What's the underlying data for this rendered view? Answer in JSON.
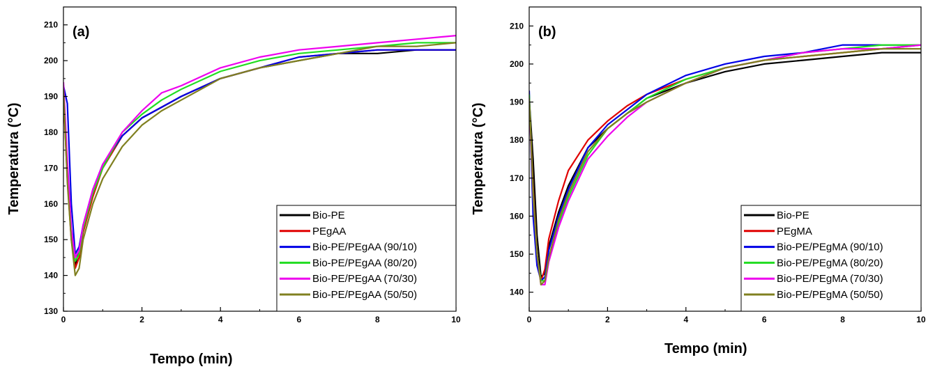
{
  "chart_data": [
    {
      "type": "line",
      "panel_label": "(a)",
      "xlabel": "Tempo  (min)",
      "ylabel": "Temperatura  (°C)",
      "xlim": [
        0,
        10
      ],
      "ylim": [
        130,
        215
      ],
      "xticks": [
        "0",
        "2",
        "4",
        "6",
        "8",
        "10"
      ],
      "yticks": [
        "130",
        "140",
        "150",
        "160",
        "170",
        "180",
        "190",
        "200",
        "210"
      ],
      "legend": "bottom-right",
      "grid": false,
      "x": [
        0,
        0.1,
        0.2,
        0.3,
        0.4,
        0.5,
        0.75,
        1,
        1.5,
        2,
        2.5,
        3,
        4,
        5,
        6,
        7,
        8,
        9,
        10
      ],
      "series": [
        {
          "name": "Bio-PE",
          "color": "#000000",
          "values": [
            191,
            168,
            152,
            143,
            147,
            153,
            163,
            170,
            179,
            184,
            187,
            190,
            195,
            198,
            200,
            202,
            202,
            203,
            203
          ]
        },
        {
          "name": "PEgAA",
          "color": "#e00000",
          "values": [
            190,
            167,
            150,
            142,
            145,
            152,
            162,
            170,
            179,
            184,
            187,
            190,
            195,
            198,
            201,
            202,
            203,
            203,
            203
          ]
        },
        {
          "name": "Bio-PE/PEgAA (90/10)",
          "color": "#0000e6",
          "values": [
            193,
            188,
            160,
            146,
            148,
            154,
            164,
            171,
            179,
            184,
            187,
            190,
            195,
            198,
            201,
            202,
            203,
            203,
            203
          ]
        },
        {
          "name": "Bio-PE/PEgAA (80/20)",
          "color": "#22dd22",
          "values": [
            191,
            170,
            152,
            144,
            146,
            153,
            163,
            170,
            180,
            185,
            189,
            192,
            197,
            200,
            202,
            203,
            204,
            205,
            205
          ]
        },
        {
          "name": "Bio-PE/PEgAA (70/30)",
          "color": "#ee00ee",
          "values": [
            194,
            172,
            153,
            145,
            147,
            154,
            164,
            171,
            180,
            186,
            191,
            193,
            198,
            201,
            203,
            204,
            205,
            206,
            207
          ]
        },
        {
          "name": "Bio-PE/PEgAA (50/50)",
          "color": "#808020",
          "values": [
            192,
            166,
            150,
            140,
            142,
            150,
            160,
            167,
            176,
            182,
            186,
            189,
            195,
            198,
            200,
            202,
            204,
            204,
            205
          ]
        }
      ]
    },
    {
      "type": "line",
      "panel_label": "(b)",
      "xlabel": "Tempo  (min)",
      "ylabel": "Temperatura  (°C)",
      "xlim": [
        0,
        10
      ],
      "ylim": [
        135,
        215
      ],
      "xticks": [
        "0",
        "2",
        "4",
        "6",
        "8",
        "10"
      ],
      "yticks": [
        "140",
        "150",
        "160",
        "170",
        "180",
        "190",
        "200",
        "210"
      ],
      "legend": "bottom-right",
      "grid": false,
      "x": [
        0,
        0.1,
        0.2,
        0.3,
        0.4,
        0.5,
        0.75,
        1,
        1.5,
        2,
        2.5,
        3,
        4,
        5,
        6,
        7,
        8,
        9,
        10
      ],
      "series": [
        {
          "name": "Bio-PE",
          "color": "#000000",
          "values": [
            191,
            175,
            155,
            144,
            145,
            152,
            161,
            168,
            178,
            183,
            187,
            191,
            195,
            198,
            200,
            201,
            202,
            203,
            203
          ]
        },
        {
          "name": "PEgMA",
          "color": "#e00000",
          "values": [
            190,
            168,
            150,
            143,
            146,
            154,
            164,
            172,
            180,
            185,
            189,
            192,
            196,
            199,
            201,
            202,
            203,
            204,
            205
          ]
        },
        {
          "name": "Bio-PE/PEgMA (90/10)",
          "color": "#0000e6",
          "values": [
            193,
            160,
            147,
            143,
            144,
            151,
            160,
            167,
            178,
            184,
            188,
            192,
            197,
            200,
            202,
            203,
            205,
            205,
            205
          ]
        },
        {
          "name": "Bio-PE/PEgMA (80/20)",
          "color": "#22dd22",
          "values": [
            192,
            165,
            150,
            143,
            143,
            149,
            158,
            165,
            176,
            183,
            187,
            191,
            196,
            199,
            201,
            203,
            204,
            205,
            205
          ]
        },
        {
          "name": "Bio-PE/PEgMA (70/30)",
          "color": "#ee00ee",
          "values": [
            190,
            166,
            150,
            142,
            142,
            148,
            157,
            164,
            175,
            181,
            186,
            190,
            195,
            199,
            201,
            203,
            204,
            204,
            205
          ]
        },
        {
          "name": "Bio-PE/PEgMA (50/50)",
          "color": "#808020",
          "values": [
            191,
            167,
            150,
            142,
            143,
            149,
            159,
            166,
            177,
            183,
            187,
            190,
            195,
            199,
            201,
            202,
            203,
            204,
            204
          ]
        }
      ]
    }
  ]
}
